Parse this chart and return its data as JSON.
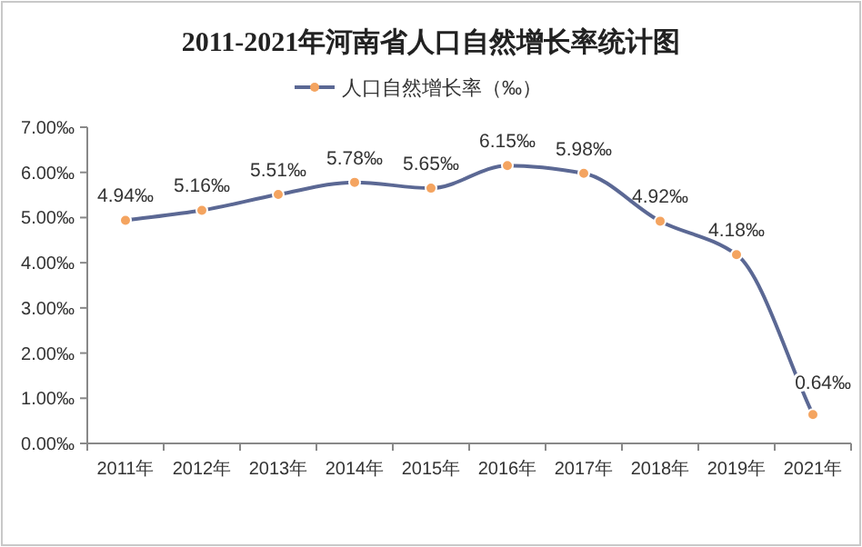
{
  "chart_data": {
    "type": "line",
    "title": "2011-2021年河南省人口自然增长率统计图",
    "categories": [
      "2011年",
      "2012年",
      "2013年",
      "2014年",
      "2015年",
      "2016年",
      "2017年",
      "2018年",
      "2019年",
      "2021年"
    ],
    "series": [
      {
        "name": "人口自然增长率（‰）",
        "color": "#5b6894",
        "values": [
          4.94,
          5.16,
          5.51,
          5.78,
          5.65,
          6.15,
          5.98,
          4.92,
          4.18,
          0.64
        ],
        "value_labels": [
          "4.94‰",
          "5.16‰",
          "5.51‰",
          "5.78‰",
          "5.65‰",
          "6.15‰",
          "5.98‰",
          "4.92‰",
          "4.18‰",
          "0.64‰"
        ]
      }
    ],
    "ylim": [
      0,
      7
    ],
    "yticks": [
      {
        "value": 0,
        "label": "0.00‰"
      },
      {
        "value": 1,
        "label": "1.00‰"
      },
      {
        "value": 2,
        "label": "2.00‰"
      },
      {
        "value": 3,
        "label": "3.00‰"
      },
      {
        "value": 4,
        "label": "4.00‰"
      },
      {
        "value": 5,
        "label": "5.00‰"
      },
      {
        "value": 6,
        "label": "6.00‰"
      },
      {
        "value": 7,
        "label": "7.00‰"
      }
    ],
    "grid": false,
    "legend": "top",
    "marker": "circle",
    "line_style": "solid"
  }
}
